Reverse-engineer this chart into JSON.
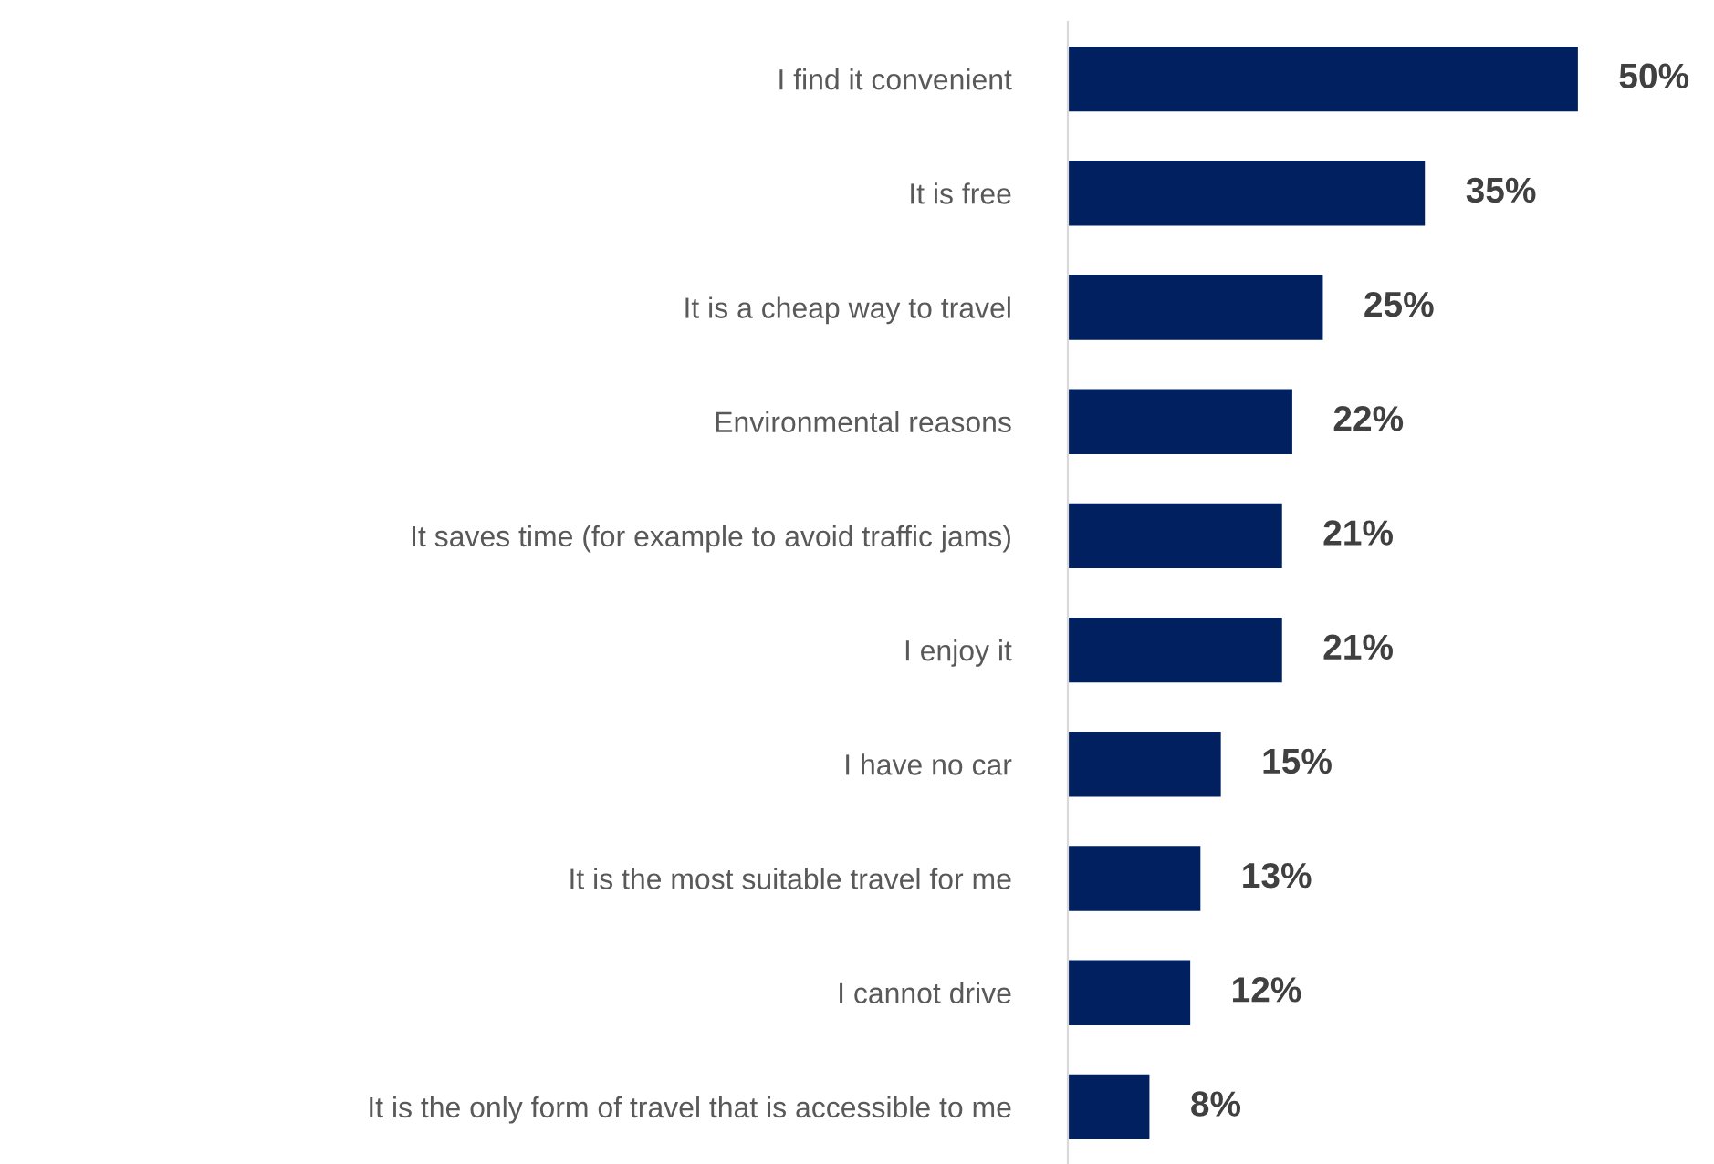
{
  "chart_data": {
    "type": "bar",
    "orientation": "horizontal",
    "categories": [
      "I find it convenient",
      "It is free",
      "It is a cheap way to travel",
      "Environmental reasons",
      "It saves time (for example to avoid traffic jams)",
      "I enjoy it",
      "I have no car",
      "It is the most suitable travel for me",
      "I cannot drive",
      "It is the only form of travel that is accessible to me"
    ],
    "values": [
      50,
      35,
      25,
      22,
      21,
      21,
      15,
      13,
      12,
      8
    ],
    "value_labels": [
      "50%",
      "35%",
      "25%",
      "22%",
      "21%",
      "21%",
      "15%",
      "13%",
      "12%",
      "8%"
    ],
    "color": "#002060",
    "grid": false,
    "legend": false
  }
}
